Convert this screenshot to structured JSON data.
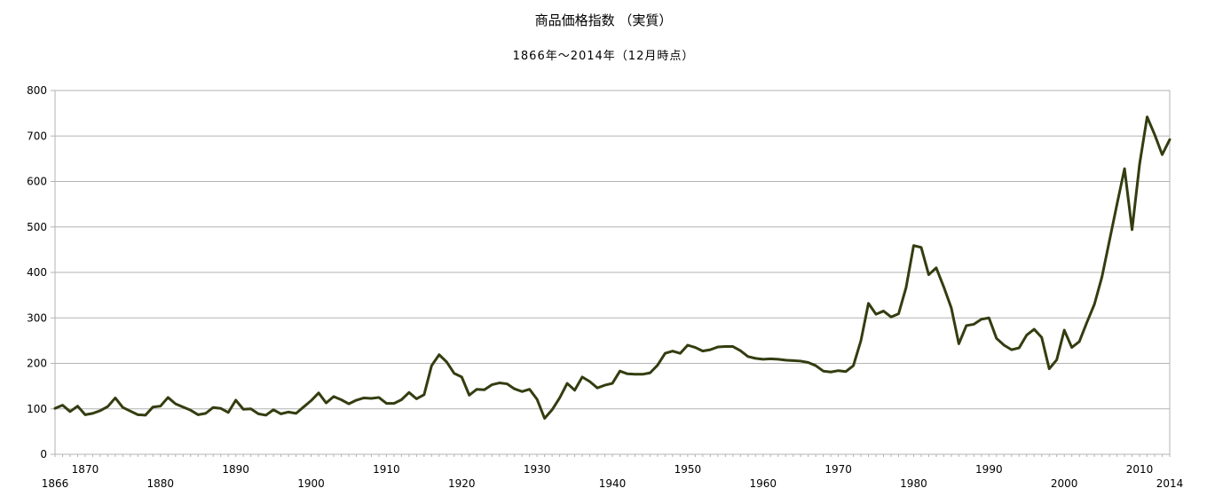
{
  "chart_data": {
    "type": "line",
    "title": "商品価格指数 （実質）",
    "subtitle": "1866年～2014年（12月時点）",
    "xlabel": "",
    "ylabel": "",
    "xlim": [
      1866,
      2014
    ],
    "ylim": [
      0,
      800
    ],
    "grid": true,
    "line_color": "#333d10",
    "y_ticks": [
      "0",
      "100",
      "200",
      "300",
      "400",
      "500",
      "600",
      "700",
      "800"
    ],
    "x_ticks_upper": [
      "1870",
      "1890",
      "1910",
      "1930",
      "1950",
      "1970",
      "1990",
      "2010"
    ],
    "x_ticks_lower": [
      "1866",
      "1880",
      "1900",
      "1920",
      "1940",
      "1960",
      "1980",
      "2000",
      "2014"
    ],
    "series": [
      {
        "x": [
          1866,
          1867,
          1868,
          1869,
          1870,
          1871,
          1872,
          1873,
          1874,
          1875,
          1876,
          1877,
          1878,
          1879,
          1880,
          1881,
          1882,
          1883,
          1884,
          1885,
          1886,
          1887,
          1888,
          1889,
          1890,
          1891,
          1892,
          1893,
          1894,
          1895,
          1896,
          1897,
          1898,
          1899,
          1900,
          1901,
          1902,
          1903,
          1904,
          1905,
          1906,
          1907,
          1908,
          1909,
          1910,
          1911,
          1912,
          1913,
          1914,
          1915,
          1916,
          1917,
          1918,
          1919,
          1920,
          1921,
          1922,
          1923,
          1924,
          1925,
          1926,
          1927,
          1928,
          1929,
          1930,
          1931,
          1932,
          1933,
          1934,
          1935,
          1936,
          1937,
          1938,
          1939,
          1940,
          1941,
          1942,
          1943,
          1944,
          1945,
          1946,
          1947,
          1948,
          1949,
          1950,
          1951,
          1952,
          1953,
          1954,
          1955,
          1956,
          1957,
          1958,
          1959,
          1960,
          1961,
          1962,
          1963,
          1964,
          1965,
          1966,
          1967,
          1968,
          1969,
          1970,
          1971,
          1972,
          1973,
          1974,
          1975,
          1976,
          1977,
          1978,
          1979,
          1980,
          1981,
          1982,
          1983,
          1984,
          1985,
          1986,
          1987,
          1988,
          1989,
          1990,
          1991,
          1992,
          1993,
          1994,
          1995,
          1996,
          1997,
          1998,
          1999,
          2000,
          2001,
          2002,
          2003,
          2004,
          2005,
          2006,
          2007,
          2008,
          2009,
          2010,
          2011,
          2012,
          2013,
          2014
        ],
        "values": [
          101,
          108,
          94,
          106,
          87,
          90,
          96,
          105,
          124,
          103,
          95,
          87,
          86,
          104,
          106,
          125,
          111,
          104,
          97,
          87,
          90,
          103,
          101,
          92,
          119,
          99,
          100,
          89,
          86,
          98,
          89,
          93,
          90,
          104,
          118,
          135,
          113,
          127,
          120,
          111,
          119,
          124,
          123,
          125,
          112,
          112,
          120,
          136,
          122,
          131,
          195,
          219,
          203,
          178,
          170,
          130,
          143,
          142,
          153,
          157,
          155,
          144,
          138,
          143,
          121,
          79,
          98,
          124,
          156,
          141,
          170,
          160,
          146,
          152,
          156,
          183,
          177,
          176,
          176,
          179,
          196,
          222,
          227,
          222,
          240,
          235,
          227,
          230,
          236,
          237,
          237,
          228,
          215,
          211,
          209,
          210,
          209,
          207,
          206,
          205,
          202,
          195,
          183,
          181,
          184,
          182,
          195,
          250,
          332,
          308,
          315,
          302,
          309,
          367,
          459,
          455,
          395,
          410,
          368,
          322,
          243,
          283,
          286,
          297,
          300,
          255,
          240,
          230,
          234,
          262,
          275,
          257,
          188,
          208,
          273,
          235,
          248,
          290,
          330,
          390,
          470,
          550,
          628,
          494,
          638,
          742,
          703,
          659,
          692
        ]
      }
    ]
  }
}
